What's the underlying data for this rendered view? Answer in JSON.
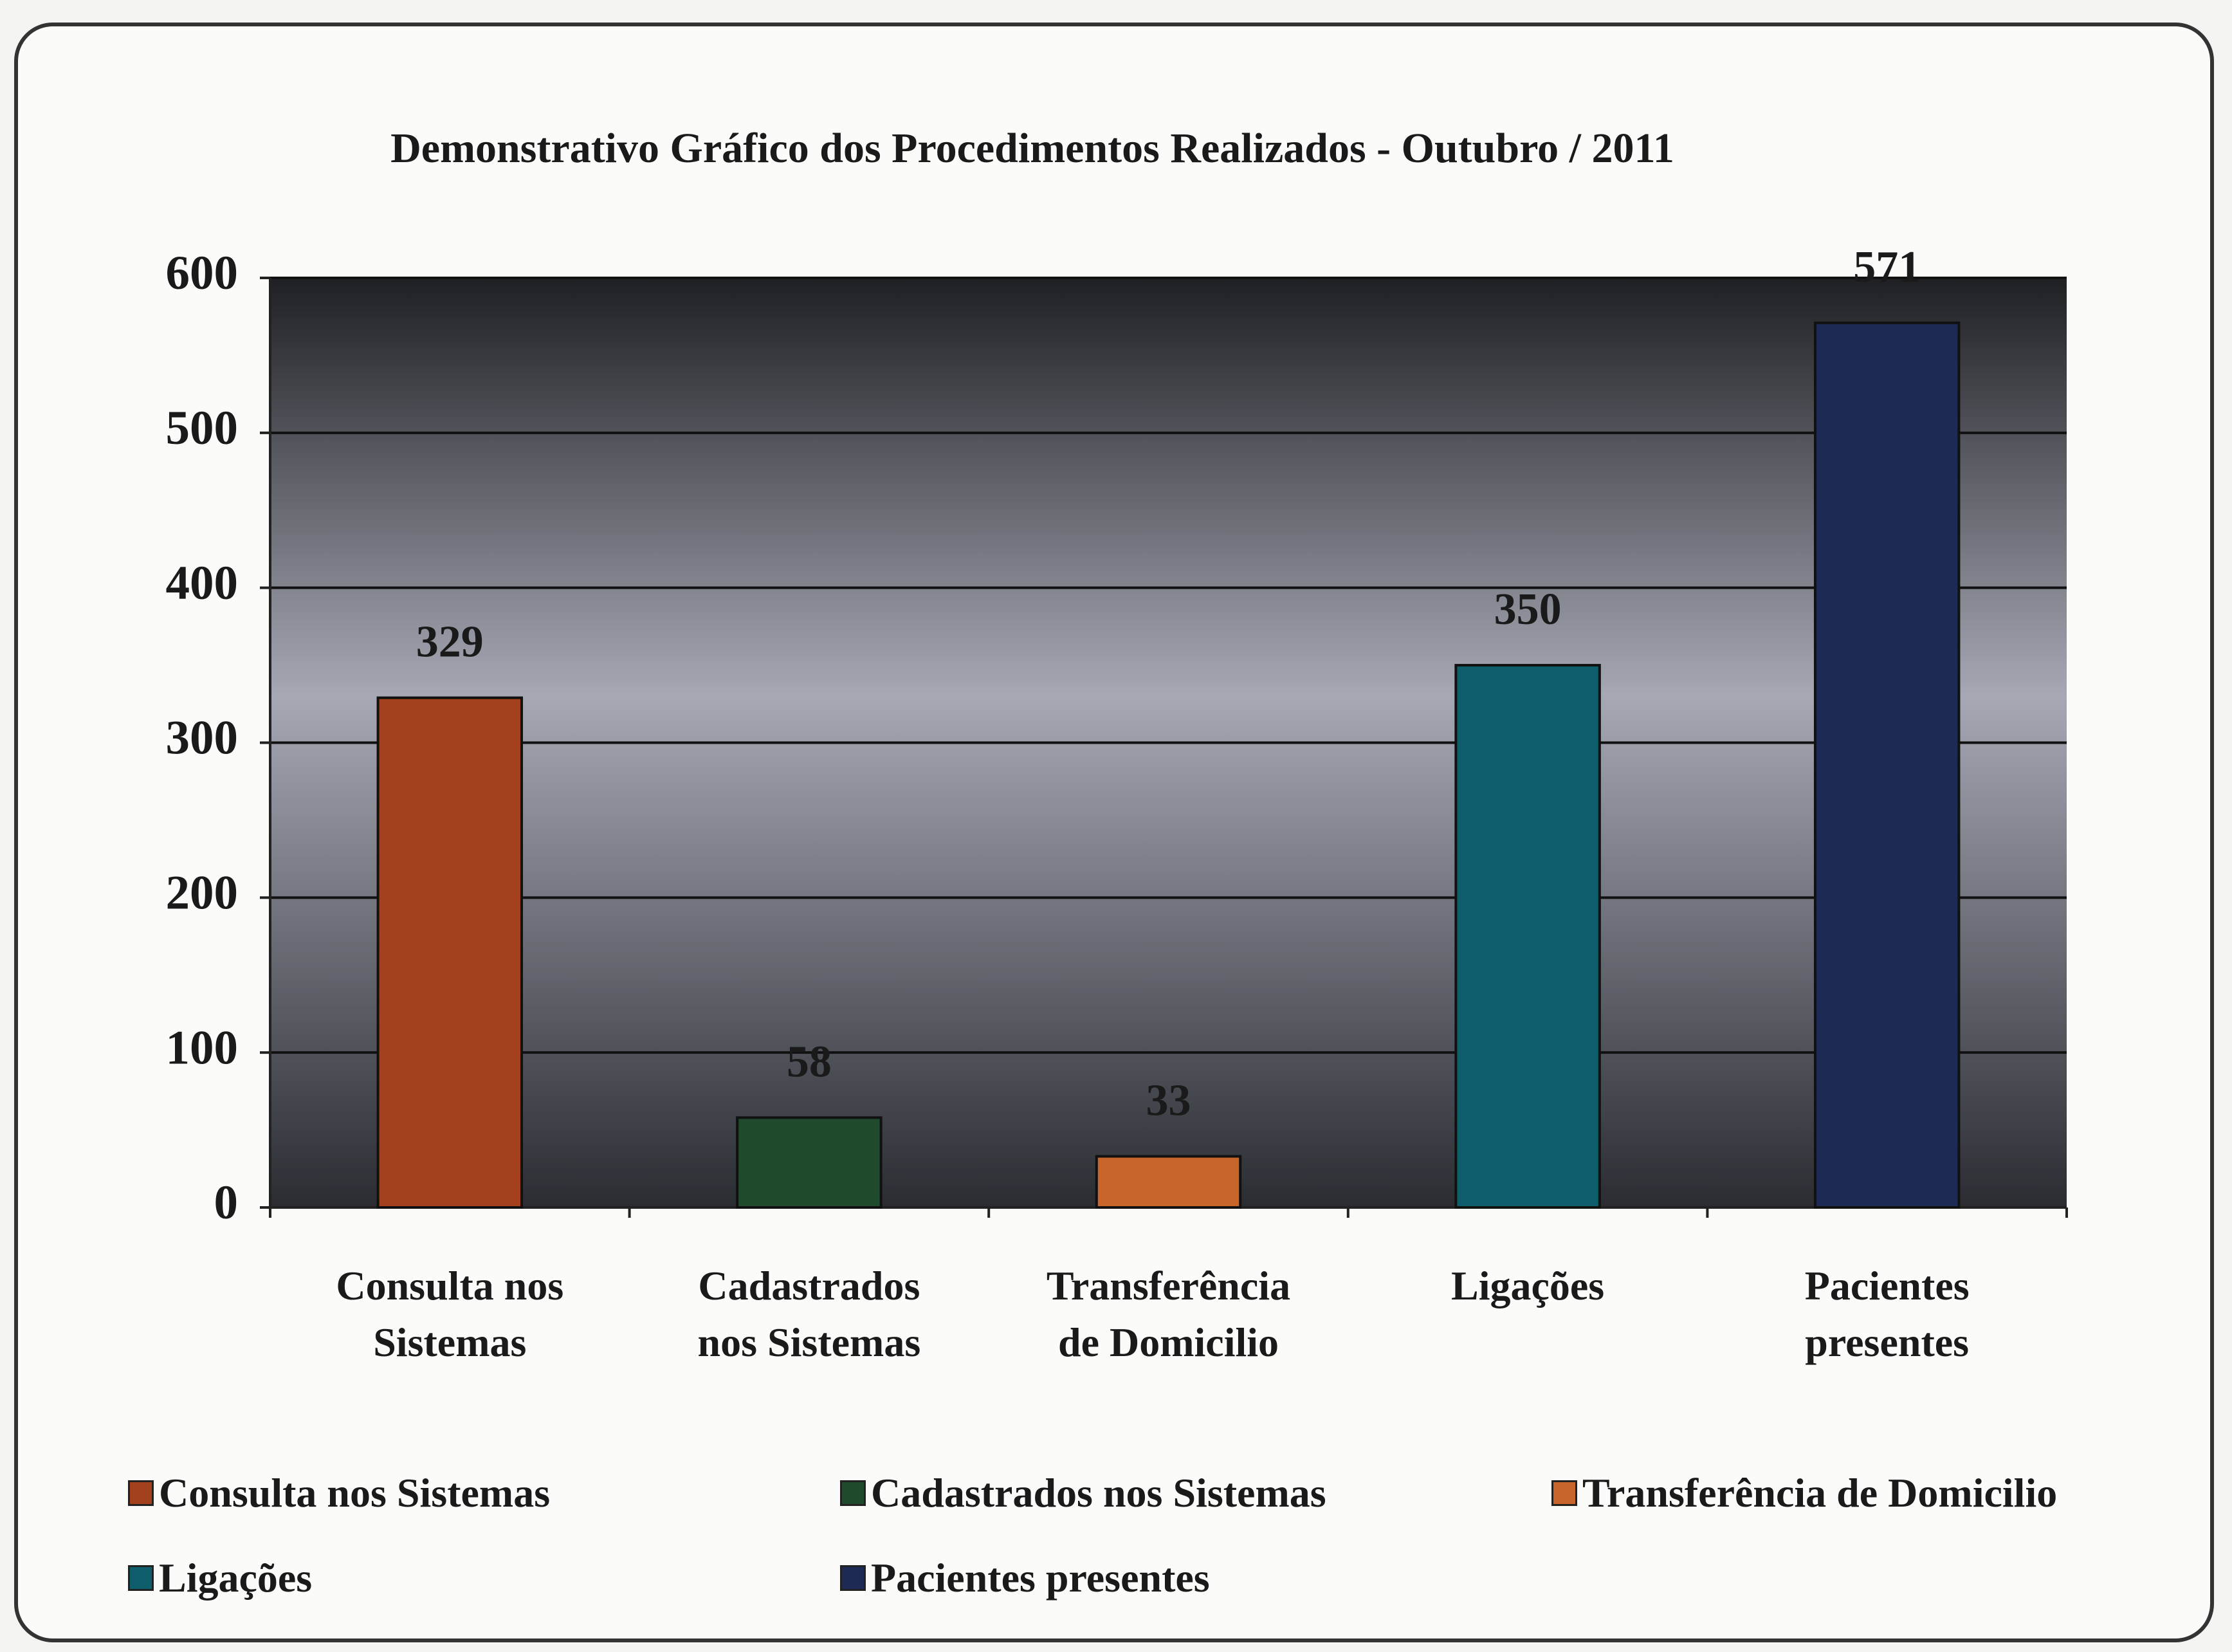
{
  "chart_data": {
    "type": "bar",
    "title": "Demonstrativo Gráfico dos Procedimentos Realizados - Outubro / 2011",
    "categories": [
      "Consulta nos Sistemas",
      "Cadastrados nos Sistemas",
      "Transferência de Domicilio",
      "Ligações",
      "Pacientes presentes"
    ],
    "values": [
      329,
      58,
      33,
      350,
      571
    ],
    "colors": [
      "#a3401d",
      "#1f4a2c",
      "#c8652a",
      "#0e5f6b",
      "#1c2a55"
    ],
    "ylim": [
      0,
      600
    ],
    "yticks": [
      0,
      100,
      200,
      300,
      400,
      500,
      600
    ],
    "grid": true,
    "legend": "bottom"
  }
}
